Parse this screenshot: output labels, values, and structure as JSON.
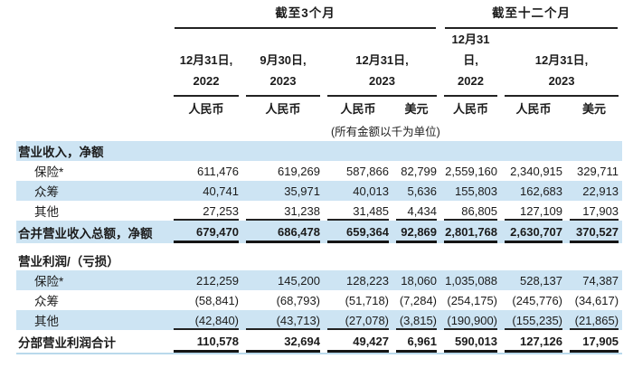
{
  "header": {
    "groups": [
      {
        "title": "截至3个月"
      },
      {
        "title": "截至十二个月"
      }
    ],
    "columns": [
      {
        "lines": [
          "12月31日,",
          "2022"
        ]
      },
      {
        "lines": [
          "9月30日,",
          "2023"
        ]
      },
      {
        "lines": [
          "12月31日,",
          "2023"
        ]
      },
      {
        "lines": [
          "12月31",
          "日,",
          "2022"
        ]
      },
      {
        "lines": [
          "12月31日,",
          "2023"
        ]
      }
    ],
    "currencies": [
      "人民币",
      "人民币",
      "人民币",
      "美元",
      "人民币",
      "人民币",
      "美元"
    ],
    "note": "(所有金额以千为单位)"
  },
  "body": {
    "rows": [
      {
        "label": "营业收入，净额",
        "type": "section"
      },
      {
        "label": "保险*",
        "values": [
          "611,476",
          "619,269",
          "587,866",
          "82,799",
          "2,559,160",
          "2,340,915",
          "329,711"
        ]
      },
      {
        "label": "众筹",
        "values": [
          "40,741",
          "35,971",
          "40,013",
          "5,636",
          "155,803",
          "162,683",
          "22,913"
        ]
      },
      {
        "label": "其他",
        "values": [
          "27,253",
          "31,238",
          "31,485",
          "4,434",
          "86,805",
          "127,109",
          "17,903"
        ]
      },
      {
        "label": "合并营业收入总额，净额",
        "type": "total",
        "values": [
          "679,470",
          "686,478",
          "659,364",
          "92,869",
          "2,801,768",
          "2,630,707",
          "370,527"
        ]
      },
      {
        "label": "营业利润/（亏损）",
        "type": "section"
      },
      {
        "label": "保险*",
        "values": [
          "212,259",
          "145,200",
          "128,223",
          "18,060",
          "1,035,088",
          "528,137",
          "74,387"
        ]
      },
      {
        "label": "众筹",
        "values": [
          "(58,841)",
          "(68,793)",
          "(51,718)",
          "(7,284)",
          "(254,175)",
          "(245,776)",
          "(34,617)"
        ]
      },
      {
        "label": "其他",
        "values": [
          "(42,840)",
          "(43,713)",
          "(27,078)",
          "(3,815)",
          "(190,900)",
          "(155,235)",
          "(21,865)"
        ]
      },
      {
        "label": "分部营业利润合计",
        "type": "total",
        "values": [
          "110,578",
          "32,694",
          "49,427",
          "6,961",
          "590,013",
          "127,126",
          "17,905"
        ]
      }
    ]
  },
  "colors": {
    "row_band": "#cde4f3",
    "rule_dark": "#1c1c1c",
    "rule_light_blue": "#b9d9ec",
    "text": "#1b1b1b"
  }
}
